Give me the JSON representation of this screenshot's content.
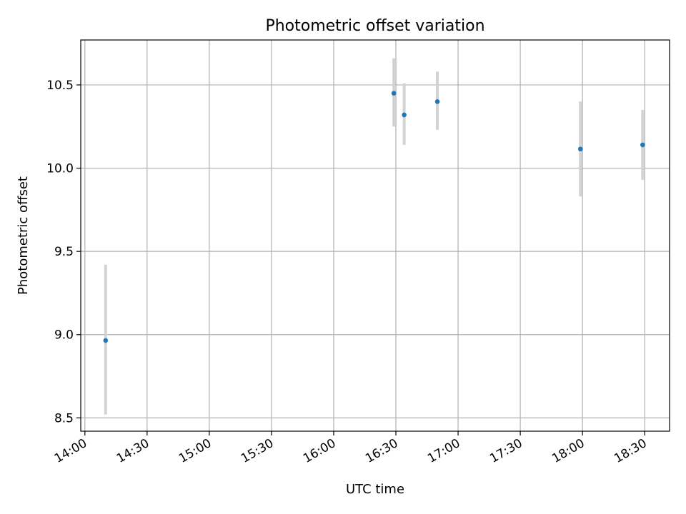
{
  "chart_data": {
    "type": "scatter",
    "title": "Photometric offset variation",
    "xlabel": "UTC time",
    "ylabel": "Photometric offset",
    "x_ticks": [
      "14:00",
      "14:30",
      "15:00",
      "15:30",
      "16:00",
      "16:30",
      "17:00",
      "17:30",
      "18:00",
      "18:30"
    ],
    "xlim": [
      "13:58",
      "18:42"
    ],
    "y_ticks": [
      "8.5",
      "9.0",
      "9.5",
      "10.0",
      "10.5"
    ],
    "ylim": [
      8.42,
      10.77
    ],
    "grid": true,
    "colors": {
      "point": "#1f77b4",
      "errorbar": "#d3d3d3",
      "grid": "#b0b0b0"
    },
    "points": [
      {
        "x": "14:10",
        "y": 8.965,
        "yerr_low": 8.52,
        "yerr_high": 9.42
      },
      {
        "x": "16:29",
        "y": 10.45,
        "yerr_low": 10.25,
        "yerr_high": 10.66
      },
      {
        "x": "16:34",
        "y": 10.32,
        "yerr_low": 10.14,
        "yerr_high": 10.51
      },
      {
        "x": "16:50",
        "y": 10.4,
        "yerr_low": 10.23,
        "yerr_high": 10.58
      },
      {
        "x": "17:59",
        "y": 10.115,
        "yerr_low": 9.83,
        "yerr_high": 10.4
      },
      {
        "x": "18:29",
        "y": 10.14,
        "yerr_low": 9.93,
        "yerr_high": 10.35
      }
    ]
  }
}
